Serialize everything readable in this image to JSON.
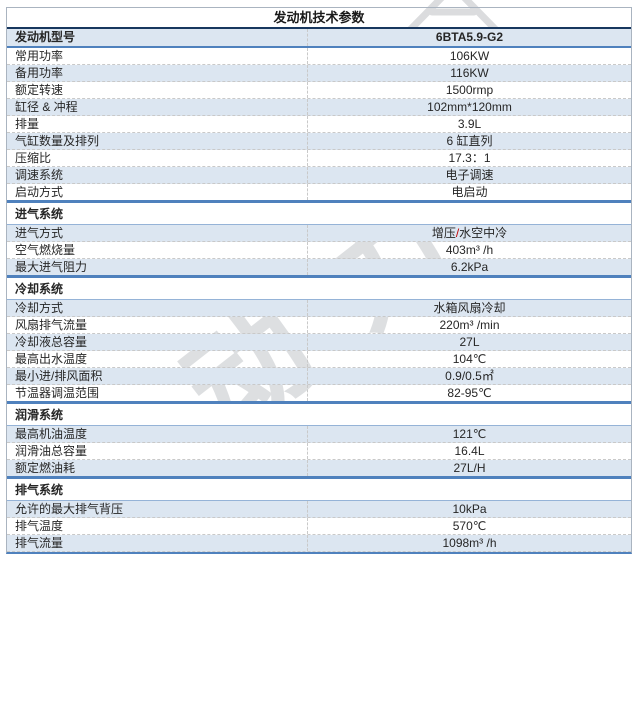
{
  "title": "发动机技术参数",
  "watermark": {
    "text": "动力"
  },
  "colors": {
    "accent_blue": "#4f81bd",
    "row_shade": "#dce6f1",
    "title_rule": "#17375e",
    "dashed_border": "#c9c9c9",
    "red_slash": "#c00000",
    "watermark_gray": "#b0b3b8"
  },
  "table": {
    "rows": [
      {
        "kind": "data",
        "label": "发动机型号",
        "value": "6BTA5.9-G2",
        "shade": true,
        "model": true
      },
      {
        "kind": "data",
        "label": "常用功率",
        "value": "106KW",
        "shade": false
      },
      {
        "kind": "data",
        "label": "备用功率",
        "value": "116KW",
        "shade": true
      },
      {
        "kind": "data",
        "label": "额定转速",
        "value": "1500rmp",
        "shade": false
      },
      {
        "kind": "data",
        "label": "缸径 & 冲程",
        "value": "102mm*120mm",
        "shade": true
      },
      {
        "kind": "data",
        "label": "排量",
        "value": "3.9L",
        "shade": false
      },
      {
        "kind": "data",
        "label": "气缸数量及排列",
        "value": "6 缸直列",
        "shade": true
      },
      {
        "kind": "data",
        "label": "压缩比",
        "value": "17.3：1",
        "shade": false
      },
      {
        "kind": "data",
        "label": "调速系统",
        "value": "电子调速",
        "shade": true
      },
      {
        "kind": "data",
        "label": "启动方式",
        "value": "电启动",
        "shade": false
      },
      {
        "kind": "section",
        "label": "进气系统"
      },
      {
        "kind": "data",
        "label": "进气方式",
        "shade": true,
        "value_parts": [
          {
            "t": "增压"
          },
          {
            "t": "/",
            "c": "#c00000"
          },
          {
            "t": "水空中冷"
          }
        ]
      },
      {
        "kind": "data",
        "label": "空气燃烧量",
        "value": "403m³ /h",
        "shade": false
      },
      {
        "kind": "data",
        "label": "最大进气阻力",
        "value": "6.2kPa",
        "shade": true
      },
      {
        "kind": "section",
        "label": "冷却系统"
      },
      {
        "kind": "data",
        "label": "冷却方式",
        "value": "水箱风扇冷却",
        "shade": true
      },
      {
        "kind": "data",
        "label": "风扇排气流量",
        "value": "220m³ /min",
        "shade": false
      },
      {
        "kind": "data",
        "label": "冷却液总容量",
        "value": "27L",
        "shade": true
      },
      {
        "kind": "data",
        "label": "最高出水温度",
        "value": "104℃",
        "shade": false
      },
      {
        "kind": "data",
        "label": "最小进/排风面积",
        "value": "0.9/0.5㎡",
        "shade": true
      },
      {
        "kind": "data",
        "label": "节温器调温范围",
        "value": "82-95℃",
        "shade": false
      },
      {
        "kind": "section",
        "label": "润滑系统"
      },
      {
        "kind": "data",
        "label": "最高机油温度",
        "value": "121℃",
        "shade": true
      },
      {
        "kind": "data",
        "label": "润滑油总容量",
        "value": "16.4L",
        "shade": false
      },
      {
        "kind": "data",
        "label": "额定燃油耗",
        "value": "27L/H",
        "shade": true
      },
      {
        "kind": "section",
        "label": "排气系统"
      },
      {
        "kind": "data",
        "label": "允许的最大排气背压",
        "value": "10kPa",
        "shade": true
      },
      {
        "kind": "data",
        "label": "排气温度",
        "value": "570℃",
        "shade": false
      },
      {
        "kind": "data",
        "label": "排气流量",
        "value": "1098m³ /h",
        "shade": true
      }
    ]
  }
}
